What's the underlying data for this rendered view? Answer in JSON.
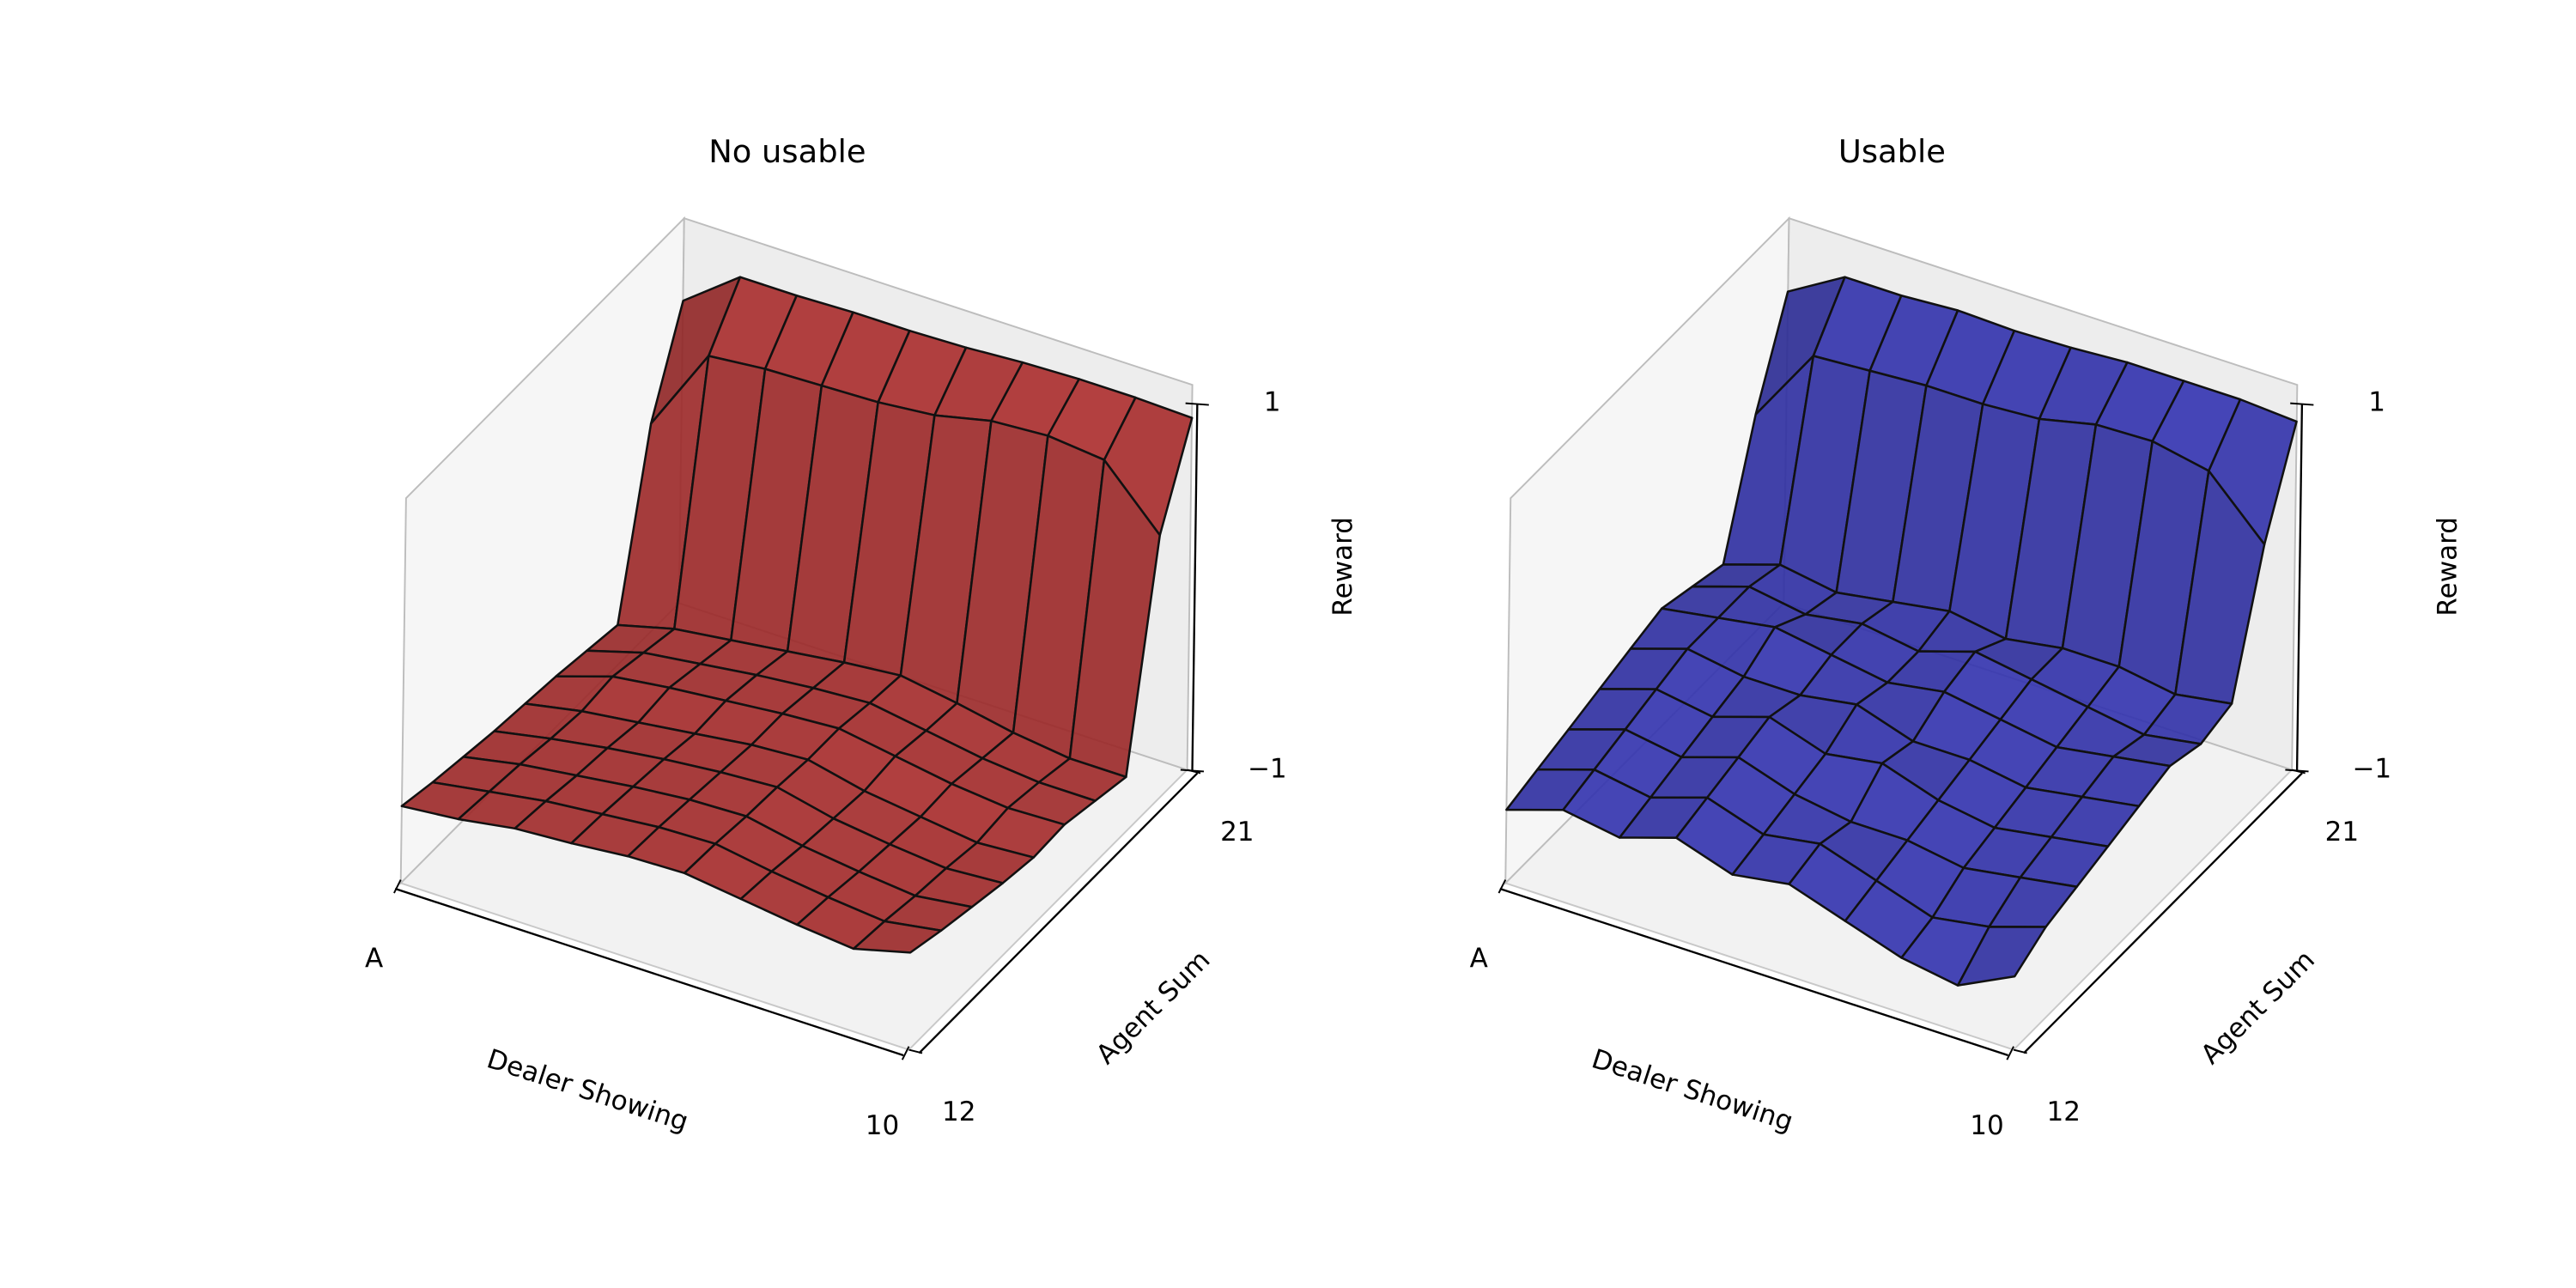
{
  "chart_data": [
    {
      "type": "surface",
      "title": "No usable",
      "xlabel": "Dealer Showing",
      "ylabel": "Agent Sum",
      "zlabel": "Reward",
      "color": "#a52a2a",
      "x": [
        1,
        2,
        3,
        4,
        5,
        6,
        7,
        8,
        9,
        10
      ],
      "y": [
        12,
        13,
        14,
        15,
        16,
        17,
        18,
        19,
        20,
        21
      ],
      "xlim": [
        1,
        10
      ],
      "ylim": [
        12,
        21
      ],
      "zlim": [
        -1,
        1
      ],
      "xticks": [
        {
          "value": 1,
          "label": "A"
        },
        10
      ],
      "yticks": [
        12,
        21
      ],
      "zticks": [
        {
          "value": -1,
          "label": "−1"
        },
        1
      ],
      "z": [
        [
          -0.58,
          -0.55,
          -0.5,
          -0.48,
          -0.45,
          -0.44,
          -0.48,
          -0.52,
          -0.55,
          -0.47
        ],
        [
          -0.62,
          -0.57,
          -0.52,
          -0.49,
          -0.46,
          -0.45,
          -0.5,
          -0.54,
          -0.57,
          -0.52
        ],
        [
          -0.65,
          -0.59,
          -0.55,
          -0.51,
          -0.48,
          -0.47,
          -0.53,
          -0.57,
          -0.6,
          -0.56
        ],
        [
          -0.68,
          -0.62,
          -0.57,
          -0.53,
          -0.5,
          -0.48,
          -0.55,
          -0.59,
          -0.62,
          -0.6
        ],
        [
          -0.7,
          -0.64,
          -0.6,
          -0.56,
          -0.52,
          -0.5,
          -0.57,
          -0.61,
          -0.65,
          -0.63
        ],
        [
          -0.72,
          -0.62,
          -0.58,
          -0.55,
          -0.52,
          -0.5,
          -0.55,
          -0.6,
          -0.63,
          -0.62
        ],
        [
          -0.75,
          -0.66,
          -0.62,
          -0.58,
          -0.55,
          -0.53,
          -0.58,
          -0.63,
          -0.66,
          -0.66
        ],
        [
          -0.78,
          -0.7,
          -0.66,
          -0.62,
          -0.58,
          -0.55,
          -0.6,
          -0.66,
          -0.7,
          -0.7
        ],
        [
          0.15,
          0.62,
          0.65,
          0.66,
          0.67,
          0.7,
          0.77,
          0.79,
          0.76,
          0.45
        ],
        [
          0.65,
          0.88,
          0.88,
          0.89,
          0.89,
          0.9,
          0.92,
          0.93,
          0.93,
          0.92
        ]
      ]
    },
    {
      "type": "surface",
      "title": "Usable",
      "xlabel": "Dealer Showing",
      "ylabel": "Agent Sum",
      "zlabel": "Reward",
      "color": "#3030a8",
      "x": [
        1,
        2,
        3,
        4,
        5,
        6,
        7,
        8,
        9,
        10
      ],
      "y": [
        12,
        13,
        14,
        15,
        16,
        17,
        18,
        19,
        20,
        21
      ],
      "xlim": [
        1,
        10
      ],
      "ylim": [
        12,
        21
      ],
      "zlim": [
        -1,
        1
      ],
      "xticks": [
        {
          "value": 1,
          "label": "A"
        },
        10
      ],
      "yticks": [
        12,
        21
      ],
      "zticks": [
        {
          "value": -1,
          "label": "−1"
        },
        1
      ],
      "z": [
        [
          -0.6,
          -0.5,
          -0.55,
          -0.45,
          -0.55,
          -0.5,
          -0.6,
          -0.7,
          -0.75,
          -0.6
        ],
        [
          -0.55,
          -0.45,
          -0.5,
          -0.4,
          -0.5,
          -0.45,
          -0.55,
          -0.65,
          -0.6,
          -0.5
        ],
        [
          -0.5,
          -0.4,
          -0.45,
          -0.35,
          -0.45,
          -0.5,
          -0.5,
          -0.55,
          -0.5,
          -0.45
        ],
        [
          -0.45,
          -0.35,
          -0.4,
          -0.3,
          -0.4,
          -0.35,
          -0.45,
          -0.5,
          -0.45,
          -0.4
        ],
        [
          -0.4,
          -0.3,
          -0.35,
          -0.35,
          -0.3,
          -0.4,
          -0.4,
          -0.45,
          -0.4,
          -0.35
        ],
        [
          -0.35,
          -0.3,
          -0.25,
          -0.3,
          -0.35,
          -0.3,
          -0.35,
          -0.4,
          -0.35,
          -0.3
        ],
        [
          -0.4,
          -0.3,
          -0.35,
          -0.3,
          -0.35,
          -0.25,
          -0.3,
          -0.35,
          -0.4,
          -0.35
        ],
        [
          -0.45,
          -0.35,
          -0.4,
          -0.35,
          -0.3,
          -0.35,
          -0.3,
          -0.3,
          -0.35,
          -0.3
        ],
        [
          0.2,
          0.62,
          0.64,
          0.66,
          0.66,
          0.68,
          0.75,
          0.76,
          0.7,
          0.4
        ],
        [
          0.7,
          0.88,
          0.88,
          0.9,
          0.89,
          0.9,
          0.92,
          0.92,
          0.92,
          0.9
        ]
      ]
    }
  ]
}
